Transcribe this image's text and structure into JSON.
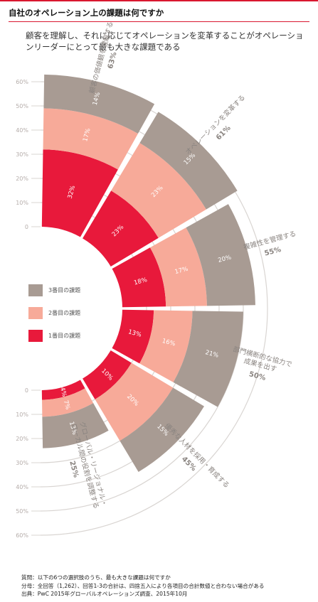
{
  "header": {
    "title": "自社のオペレーション上の課題は何ですか",
    "subtitle": "顧客を理解し、それに応じてオペレーションを変革することがオペレーションリーダーにとって最も大きな課題である"
  },
  "colors": {
    "first": "#e8193b",
    "second": "#f7aa99",
    "third": "#a89b93",
    "ring": "#d9d5d2",
    "tick": "#b5adaa",
    "label": "#8a8480"
  },
  "chart_data": {
    "type": "polar_stacked_bar",
    "scale_ticks_top": [
      "60%",
      "50%",
      "40%",
      "30%",
      "20%",
      "10%",
      "0"
    ],
    "scale_ticks_bottom": [
      "0",
      "10%",
      "20%",
      "30%",
      "40%",
      "50%",
      "60%"
    ],
    "rmax": 60,
    "series": [
      {
        "name": "1番目の課題",
        "values": [
          32,
          23,
          18,
          13,
          10,
          4
        ]
      },
      {
        "name": "2番目の課題",
        "values": [
          17,
          23,
          17,
          16,
          20,
          7
        ]
      },
      {
        "name": "3番目の課題",
        "values": [
          14,
          15,
          20,
          21,
          15,
          13
        ]
      }
    ],
    "value_labels": [
      [
        "32%",
        "23%",
        "18%",
        "13%",
        "10%",
        "4%"
      ],
      [
        "17%",
        "23%",
        "17%",
        "16%",
        "20%",
        "7%"
      ],
      [
        "14%",
        "15%",
        "20%",
        "21%",
        "15%",
        "13%"
      ]
    ],
    "categories": [
      {
        "label": "顧客の価値観を理解する",
        "total": "63%"
      },
      {
        "label": "オペレーションを変革する",
        "total": "61%"
      },
      {
        "label": "複雑性を管理する",
        "total": "55%"
      },
      {
        "label": "部門横断的な協力で成果を出す",
        "total": "50%"
      },
      {
        "label": "優秀な人材を採用・育成する",
        "total": "45%"
      },
      {
        "label": "グローバル・リージョナル・ローカル間の役割を調整する",
        "total": "25%"
      }
    ],
    "category_label_lines": [
      [
        "顧客の価値観を理解する"
      ],
      [
        "オペレーションを変革する"
      ],
      [
        "複雑性を管理する"
      ],
      [
        "部門横断的な協力で",
        "成果を出す"
      ],
      [
        "優秀な人材を採用・育成する"
      ],
      [
        "グローバル・リージョナル・",
        "ローカル間の役割を調整する"
      ]
    ]
  },
  "legend": [
    {
      "label": "3番目の課題"
    },
    {
      "label": "2番目の課題"
    },
    {
      "label": "1番目の課題"
    }
  ],
  "footer": {
    "q": "質問：以下の6つの選択肢のうち、最も大きな課題は何ですか",
    "n": "分母：全回答（1,262）、回答1-3の合計は、四捨五入により各項目の合計数値と合わない場合がある",
    "src": "出典：PwC 2015年グローバルオペレーションズ調査、2015年10月"
  }
}
